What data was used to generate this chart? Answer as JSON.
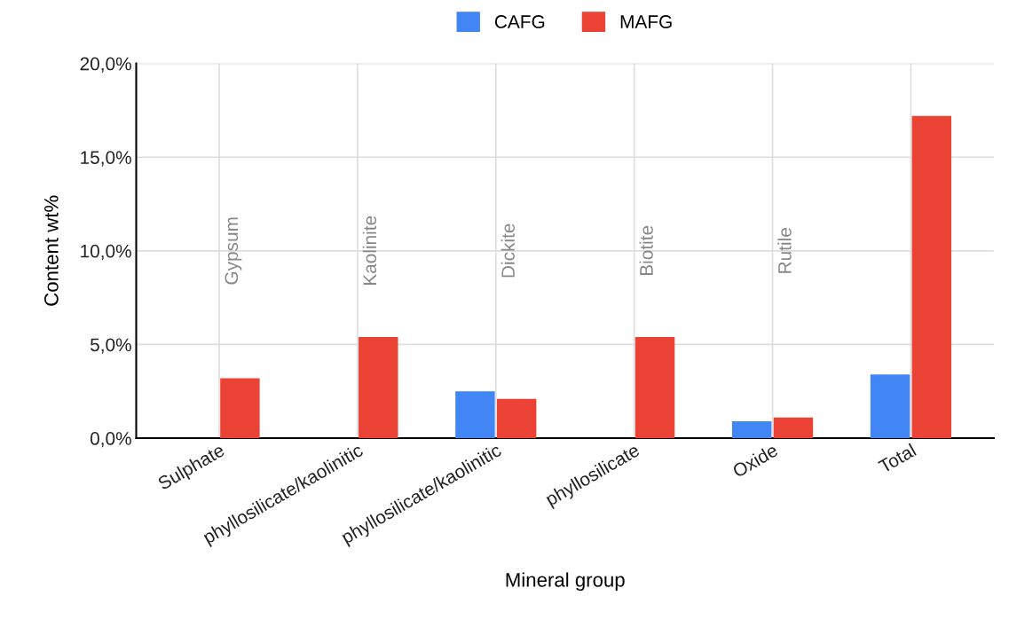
{
  "chart_data": {
    "type": "bar",
    "xlabel": "Mineral group",
    "ylabel": "Content wt%",
    "categories": [
      "Sulphate",
      "phyllosilicate/kaolinitic",
      "phyllosilicate/kaolinitic",
      "phyllosilicate",
      "Oxide",
      "Total"
    ],
    "series": [
      {
        "name": "CAFG",
        "color": "#4285f4",
        "values": [
          0,
          0,
          2.5,
          0,
          0.9,
          3.4
        ]
      },
      {
        "name": "MAFG",
        "color": "#ea4335",
        "values": [
          3.2,
          5.4,
          2.1,
          5.4,
          1.1,
          17.2
        ]
      }
    ],
    "ylim": [
      0,
      20
    ],
    "yticks": [
      {
        "value": 0,
        "label": "0,0%"
      },
      {
        "value": 5,
        "label": "5,0%"
      },
      {
        "value": 10,
        "label": "10,0%"
      },
      {
        "value": 15,
        "label": "15,0%"
      },
      {
        "value": 20,
        "label": "20,0%"
      }
    ],
    "annotations": [
      "Gypsum",
      "Kaolinite",
      "Dickite",
      "Biotite",
      "Rutile"
    ],
    "grid": true,
    "legend": "top"
  }
}
